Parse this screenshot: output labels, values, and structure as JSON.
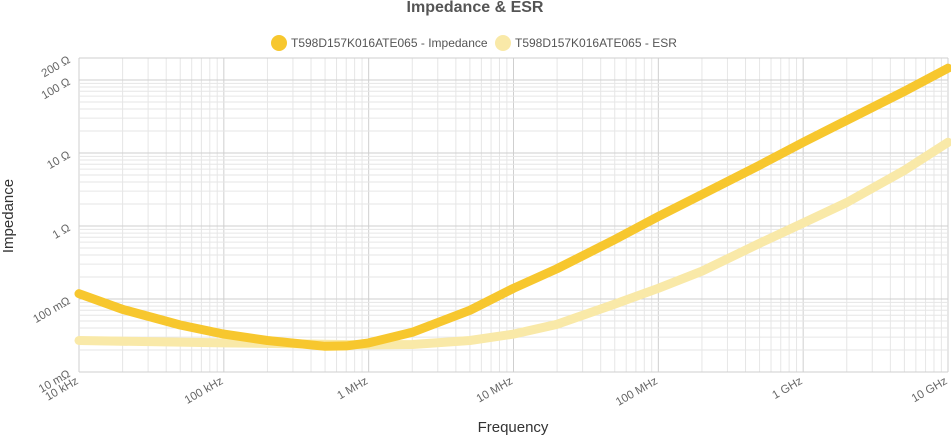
{
  "chart_data": {
    "type": "line",
    "title": "Impedance & ESR",
    "xlabel": "Frequency",
    "ylabel": "Impedance",
    "x_scale": "log",
    "y_scale": "log",
    "xlim_hz": [
      10000,
      10000000000
    ],
    "ylim_ohm": [
      0.01,
      200
    ],
    "x_ticks": [
      {
        "value": 10000,
        "label": "10 kHz"
      },
      {
        "value": 100000,
        "label": "100 kHz"
      },
      {
        "value": 1000000,
        "label": "1 MHz"
      },
      {
        "value": 10000000,
        "label": "10 MHz"
      },
      {
        "value": 100000000,
        "label": "100 MHz"
      },
      {
        "value": 1000000000,
        "label": "1 GHz"
      },
      {
        "value": 10000000000,
        "label": "10 GHz"
      }
    ],
    "y_ticks": [
      {
        "value": 0.01,
        "label": "10 mΩ"
      },
      {
        "value": 0.1,
        "label": "100 mΩ"
      },
      {
        "value": 1,
        "label": "1 Ω"
      },
      {
        "value": 10,
        "label": "10 Ω"
      },
      {
        "value": 100,
        "label": "100 Ω"
      },
      {
        "value": 200,
        "label": "200 Ω"
      }
    ],
    "grid": true,
    "legend_position": "top-center",
    "series": [
      {
        "name": "T598D157K016ATE065 - Impedance",
        "color": "#f7c72e",
        "points": [
          [
            10000,
            0.118
          ],
          [
            20000,
            0.072
          ],
          [
            50000,
            0.044
          ],
          [
            100000,
            0.033
          ],
          [
            200000,
            0.027
          ],
          [
            500000,
            0.0225
          ],
          [
            700000,
            0.0228
          ],
          [
            1000000,
            0.025
          ],
          [
            2000000,
            0.035
          ],
          [
            5000000,
            0.07
          ],
          [
            10000000,
            0.14
          ],
          [
            20000000,
            0.26
          ],
          [
            50000000,
            0.65
          ],
          [
            100000000,
            1.35
          ],
          [
            200000000,
            2.7
          ],
          [
            500000000,
            6.8
          ],
          [
            1000000000,
            14
          ],
          [
            2000000000,
            28
          ],
          [
            5000000000,
            70
          ],
          [
            10000000000,
            145
          ]
        ]
      },
      {
        "name": "T598D157K016ATE065 - ESR",
        "color": "#f9e9a8",
        "points": [
          [
            10000,
            0.027
          ],
          [
            100000,
            0.025
          ],
          [
            500000,
            0.024
          ],
          [
            1000000,
            0.0235
          ],
          [
            2000000,
            0.0238
          ],
          [
            5000000,
            0.027
          ],
          [
            10000000,
            0.033
          ],
          [
            20000000,
            0.045
          ],
          [
            50000000,
            0.085
          ],
          [
            100000000,
            0.14
          ],
          [
            200000000,
            0.24
          ],
          [
            500000000,
            0.58
          ],
          [
            1000000000,
            1.1
          ],
          [
            2000000000,
            2.1
          ],
          [
            5000000000,
            5.8
          ],
          [
            10000000000,
            14
          ]
        ]
      }
    ]
  }
}
